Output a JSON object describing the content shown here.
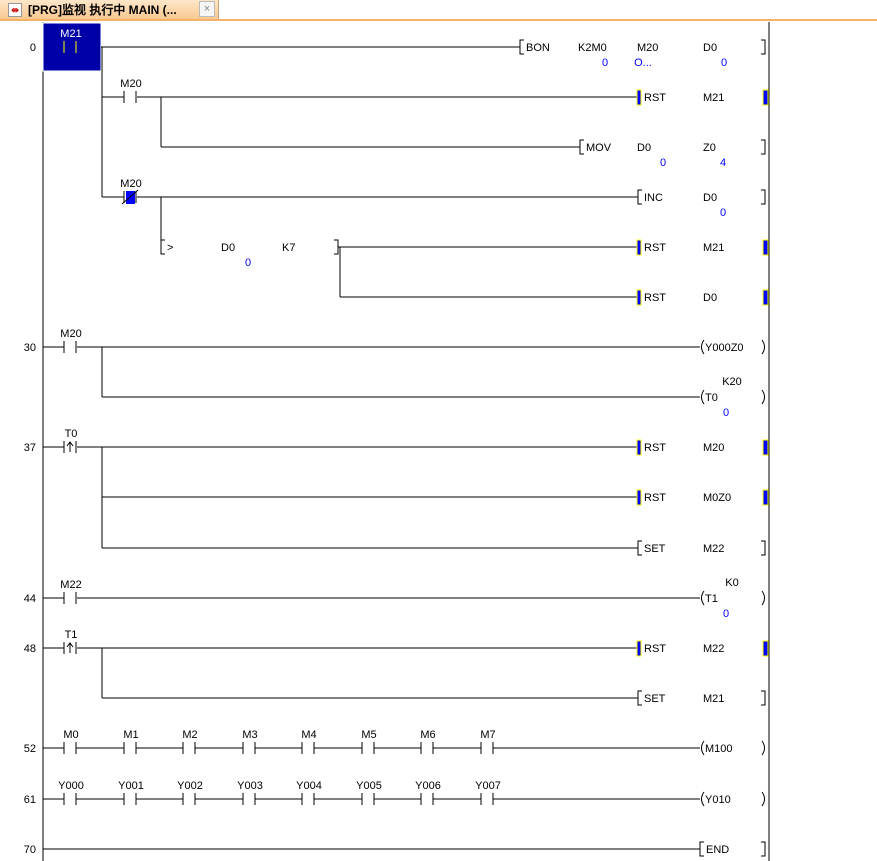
{
  "tab": {
    "title": "[PRG]监视 执行中 MAIN (...",
    "icon": "program-icon",
    "close": "×"
  },
  "colors": {
    "value": "#0000ff",
    "monitor_on": "#0000a8",
    "monitor_marker": "#0000ff",
    "marker_edge": "#ffff00",
    "line": "#000000"
  },
  "steps": [
    "0",
    "30",
    "37",
    "44",
    "48",
    "52",
    "61",
    "70"
  ],
  "contacts": [
    {
      "label": "M21",
      "type": "NO",
      "state": "on",
      "selected": true
    },
    {
      "label": "M20",
      "type": "NO"
    },
    {
      "label": "M20",
      "type": "NC",
      "state": "on"
    },
    {
      "label": "M20",
      "type": "NO"
    },
    {
      "label": "T0",
      "type": "rising"
    },
    {
      "label": "M22",
      "type": "NO"
    },
    {
      "label": "T1",
      "type": "rising"
    },
    {
      "label": "M0",
      "type": "NO"
    },
    {
      "label": "M1",
      "type": "NO"
    },
    {
      "label": "M2",
      "type": "NO"
    },
    {
      "label": "M3",
      "type": "NO"
    },
    {
      "label": "M4",
      "type": "NO"
    },
    {
      "label": "M5",
      "type": "NO"
    },
    {
      "label": "M6",
      "type": "NO"
    },
    {
      "label": "M7",
      "type": "NO"
    },
    {
      "label": "Y000",
      "type": "NO"
    },
    {
      "label": "Y001",
      "type": "NO"
    },
    {
      "label": "Y002",
      "type": "NO"
    },
    {
      "label": "Y003",
      "type": "NO"
    },
    {
      "label": "Y004",
      "type": "NO"
    },
    {
      "label": "Y005",
      "type": "NO"
    },
    {
      "label": "Y006",
      "type": "NO"
    },
    {
      "label": "Y007",
      "type": "NO"
    }
  ],
  "instructions": [
    {
      "op": "BON",
      "operands": [
        "K2M0",
        "M20",
        "D0"
      ],
      "values": [
        "0",
        "O...",
        "0"
      ]
    },
    {
      "op": "RST",
      "operands": [
        "M21"
      ],
      "values": [],
      "active": true
    },
    {
      "op": "MOV",
      "operands": [
        "D0",
        "Z0"
      ],
      "values": [
        "0",
        "4"
      ]
    },
    {
      "op": "INC",
      "operands": [
        "D0"
      ],
      "values": [
        "0"
      ]
    },
    {
      "op": "RST",
      "operands": [
        "M21"
      ],
      "values": [],
      "active": true
    },
    {
      "op": "RST",
      "operands": [
        "D0"
      ],
      "values": [],
      "active": true
    },
    {
      "op": "RST",
      "operands": [
        "M20"
      ],
      "values": [],
      "active": true
    },
    {
      "op": "RST",
      "operands": [
        "M0Z0"
      ],
      "values": [],
      "active": true
    },
    {
      "op": "SET",
      "operands": [
        "M22"
      ],
      "values": []
    },
    {
      "op": "RST",
      "operands": [
        "M22"
      ],
      "values": [],
      "active": true
    },
    {
      "op": "SET",
      "operands": [
        "M21"
      ],
      "values": []
    },
    {
      "op": "END",
      "operands": [],
      "values": []
    }
  ],
  "compare": {
    "op": ">",
    "operands": [
      "D0",
      "K7"
    ],
    "values": [
      "0"
    ]
  },
  "coils": [
    {
      "label": "Y000Z0"
    },
    {
      "label": "T0",
      "setting": "K20",
      "value": "0"
    },
    {
      "label": "T1",
      "setting": "K0",
      "value": "0"
    },
    {
      "label": "M100"
    },
    {
      "label": "Y010"
    }
  ]
}
